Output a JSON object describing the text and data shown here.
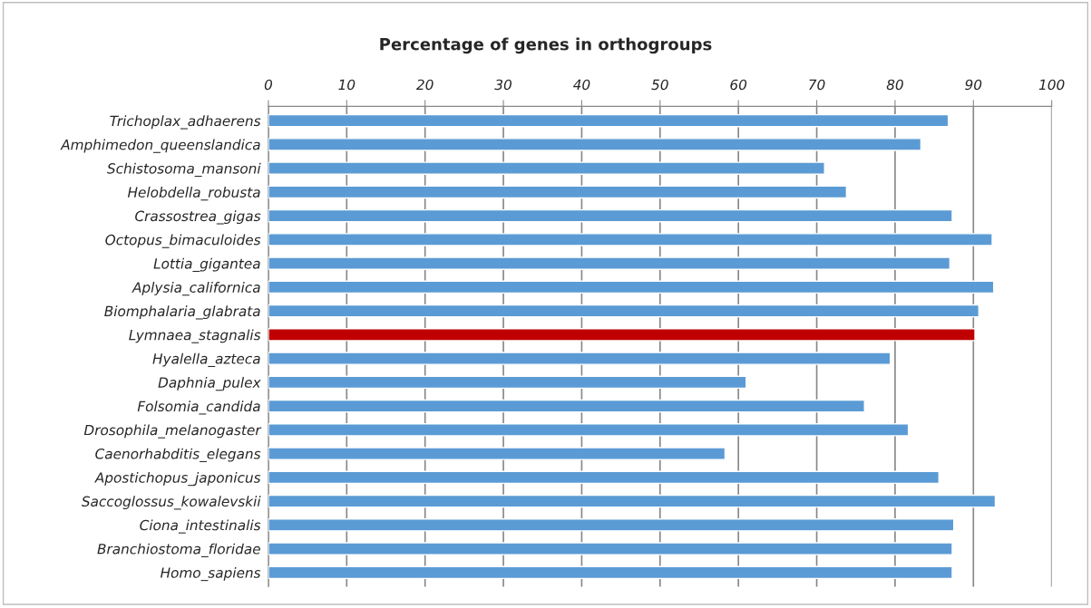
{
  "chart_data": {
    "type": "bar",
    "orientation": "horizontal",
    "title": "Percentage of genes in orthogroups",
    "categories": [
      "Trichoplax_adhaerens",
      "Amphimedon_queenslandica",
      "Schistosoma_mansoni",
      "Helobdella_robusta",
      "Crassostrea_gigas",
      "Octopus_bimaculoides",
      "Lottia_gigantea",
      "Aplysia_californica",
      "Biomphalaria_glabrata",
      "Lymnaea_stagnalis",
      "Hyalella_azteca",
      "Daphnia_pulex",
      "Folsomia_candida",
      "Drosophila_melanogaster",
      "Caenorhabditis_elegans",
      "Apostichopus_japonicus",
      "Saccoglossus_kowalevskii",
      "Ciona_intestinalis",
      "Branchiostoma_floridae",
      "Homo_sapiens"
    ],
    "values": [
      86.8,
      83.3,
      71.0,
      73.8,
      87.3,
      92.4,
      87.0,
      92.6,
      90.7,
      90.2,
      79.4,
      61.0,
      76.1,
      81.7,
      58.3,
      85.6,
      92.8,
      87.5,
      87.3,
      87.3
    ],
    "colors": [
      "#5b9bd5",
      "#5b9bd5",
      "#5b9bd5",
      "#5b9bd5",
      "#5b9bd5",
      "#5b9bd5",
      "#5b9bd5",
      "#5b9bd5",
      "#5b9bd5",
      "#c00000",
      "#5b9bd5",
      "#5b9bd5",
      "#5b9bd5",
      "#5b9bd5",
      "#5b9bd5",
      "#5b9bd5",
      "#5b9bd5",
      "#5b9bd5",
      "#5b9bd5",
      "#5b9bd5"
    ],
    "xlim": [
      0,
      100
    ],
    "xticks": [
      0,
      10,
      20,
      30,
      40,
      50,
      60,
      70,
      80,
      90,
      100
    ],
    "grid": "x"
  }
}
